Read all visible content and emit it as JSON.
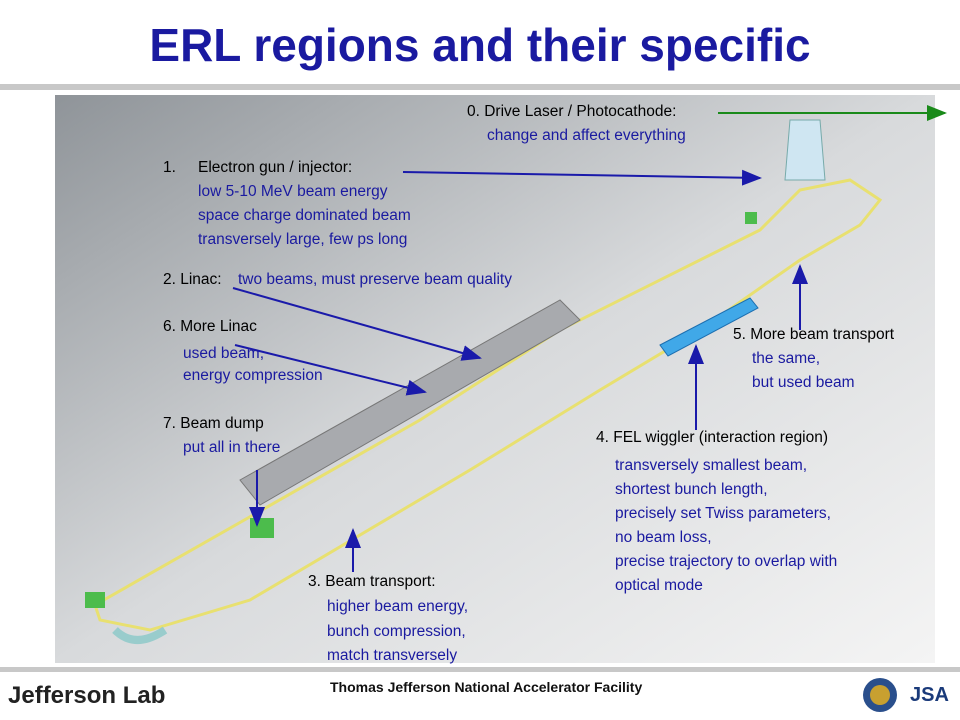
{
  "title": "ERL regions and their specific",
  "regions": [
    {
      "heading": "0. Drive Laser / Photocathode:",
      "lines": [
        "change and affect everything"
      ]
    },
    {
      "number": "1.",
      "heading": "Electron gun / injector:",
      "lines": [
        "low 5-10 MeV beam energy",
        "space charge dominated beam",
        "transversely large, few ps long"
      ]
    },
    {
      "heading": "2. Linac:",
      "lines": [
        "two beams, must preserve beam quality"
      ]
    },
    {
      "heading": "3. Beam transport:",
      "lines": [
        "higher beam energy,",
        "bunch compression,",
        "match transversely"
      ]
    },
    {
      "heading": "4. FEL wiggler (interaction region)",
      "lines": [
        "transversely smallest beam,",
        "shortest bunch length,",
        "precisely set Twiss parameters,",
        "no beam loss,",
        "precise trajectory to overlap with",
        "optical mode"
      ]
    },
    {
      "heading": "5. More beam transport",
      "lines": [
        "the same,",
        "but used beam"
      ]
    },
    {
      "heading": "6. More Linac",
      "lines": [
        "used beam,",
        "energy compression"
      ]
    },
    {
      "heading": "7. Beam dump",
      "lines": [
        "put all in there"
      ]
    }
  ],
  "footer": {
    "logo": "Jefferson Lab",
    "facility": "Thomas Jefferson National Accelerator Facility",
    "partner": "JSA"
  }
}
